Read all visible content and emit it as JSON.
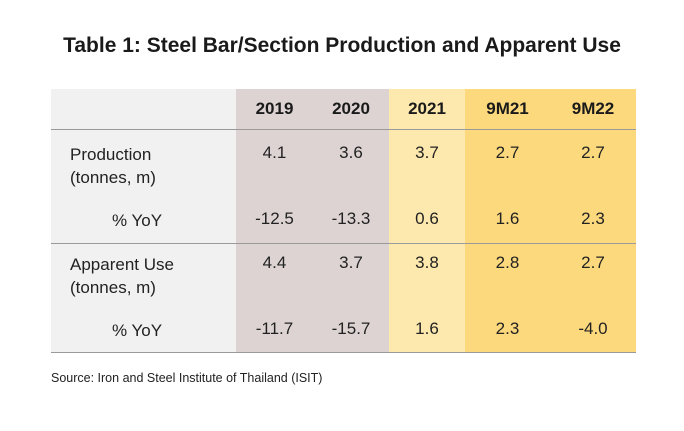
{
  "title": "Table 1: Steel Bar/Section Production and Apparent Use",
  "colors": {
    "label_column": "#f1f1f1",
    "col_2019": "#ddd3d3",
    "col_2020": "#ddd3d3",
    "col_2021": "#fde8ad",
    "col_9m21": "#fdd97d",
    "col_9m22": "#fdd97d",
    "rules": "#9a9a9a"
  },
  "table": {
    "columns": [
      "2019",
      "2020",
      "2021",
      "9M21",
      "9M22"
    ],
    "rows": [
      {
        "label_line1": "Production",
        "label_line2": "(tonnes,  m)",
        "values": [
          "4.1",
          "3.6",
          "3.7",
          "2.7",
          "2.7"
        ]
      },
      {
        "label_line1": "% YoY",
        "values": [
          "-12.5",
          "-13.3",
          "0.6",
          "1.6",
          "2.3"
        ]
      },
      {
        "label_line1": "Apparent Use",
        "label_line2": "(tonnes,  m)",
        "values": [
          "4.4",
          "3.7",
          "3.8",
          "2.8",
          "2.7"
        ]
      },
      {
        "label_line1": "% YoY",
        "values": [
          "-11.7",
          "-15.7",
          "1.6",
          "2.3",
          "-4.0"
        ]
      }
    ]
  },
  "source": "Source:  Iron and Steel Institute of Thailand (ISIT)"
}
